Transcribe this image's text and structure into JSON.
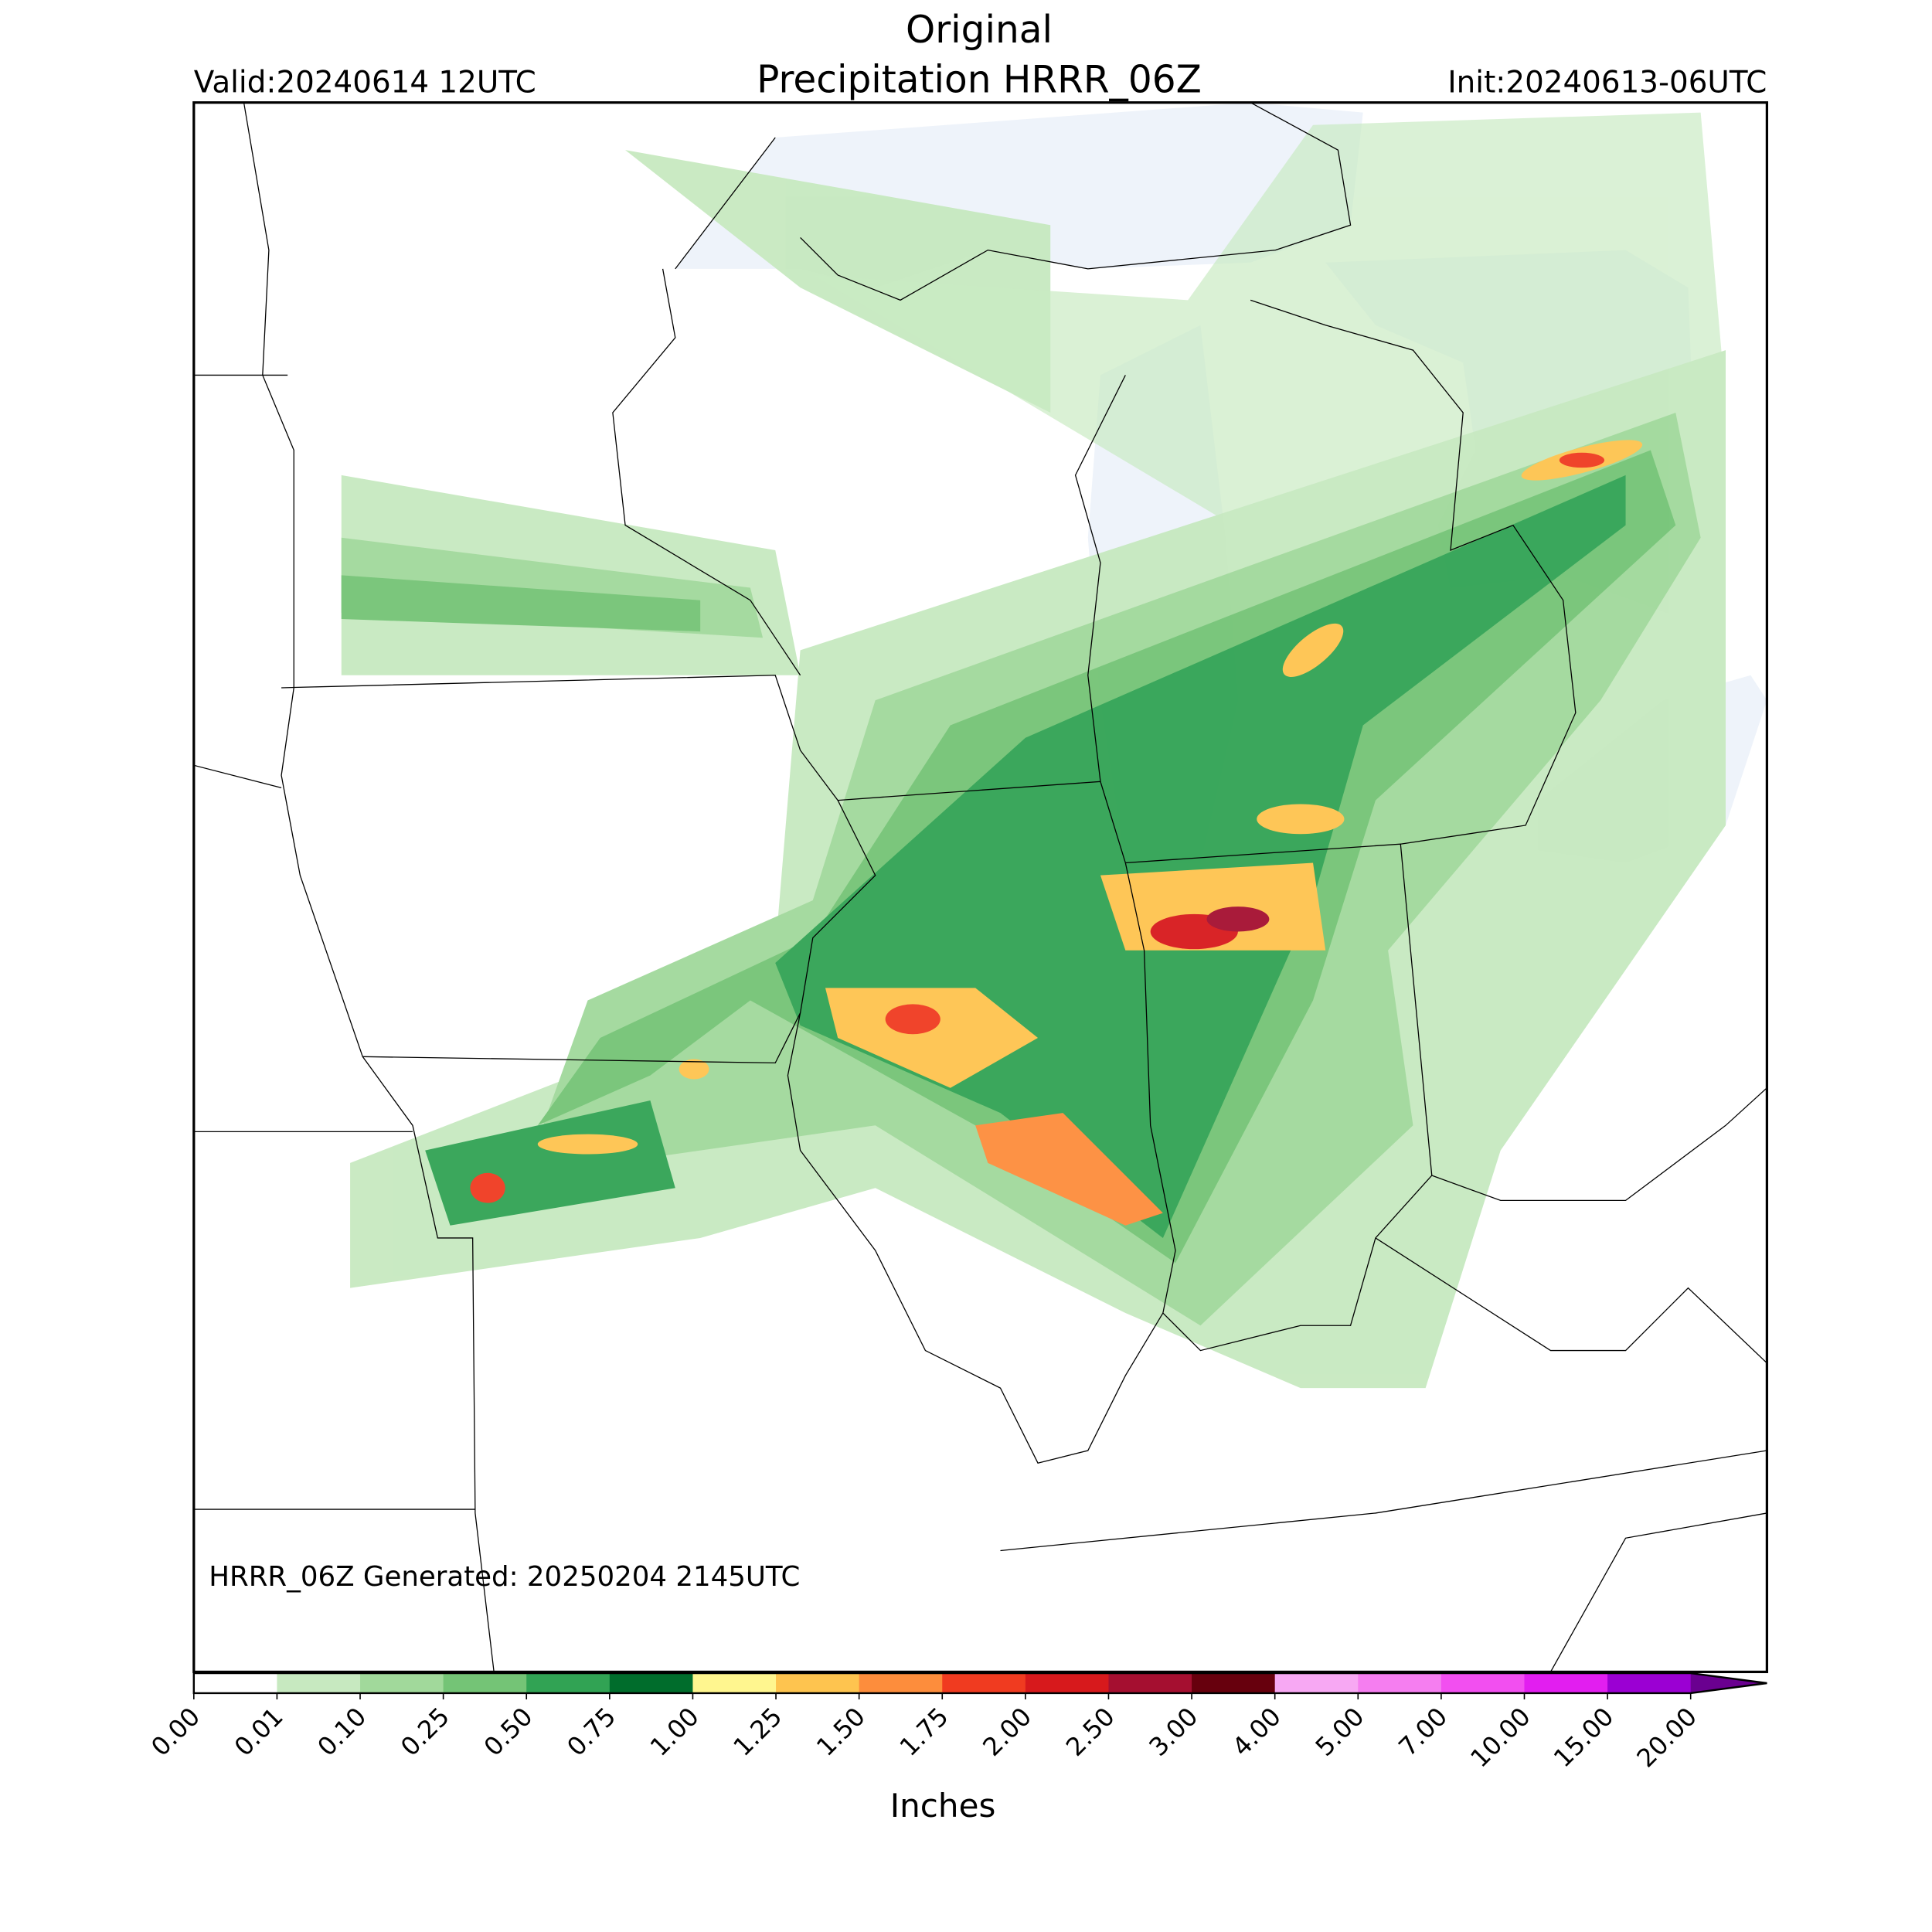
{
  "header": {
    "title": [
      "Original",
      "Precipitation HRRR_06Z"
    ],
    "valid": "Valid:20240614 12UTC",
    "init": "Init:20240613-06UTC"
  },
  "footer": "HRRR_06Z Generated: 20250204 2145UTC",
  "colorbar": {
    "label": "Inches",
    "ticks": [
      {
        "value": 0,
        "label": "0.00"
      },
      {
        "value": 0.01,
        "label": "0.01"
      },
      {
        "value": 0.1,
        "label": "0.10"
      },
      {
        "value": 0.25,
        "label": "0.25"
      },
      {
        "value": 0.5,
        "label": "0.50"
      },
      {
        "value": 0.75,
        "label": "0.75"
      },
      {
        "value": 1,
        "label": "1.00"
      },
      {
        "value": 1.25,
        "label": "1.25"
      },
      {
        "value": 1.5,
        "label": "1.50"
      },
      {
        "value": 1.75,
        "label": "1.75"
      },
      {
        "value": 2,
        "label": "2.00"
      },
      {
        "value": 2.5,
        "label": "2.50"
      },
      {
        "value": 3,
        "label": "3.00"
      },
      {
        "value": 4,
        "label": "4.00"
      },
      {
        "value": 5,
        "label": "5.00"
      },
      {
        "value": 7,
        "label": "7.00"
      },
      {
        "value": 10,
        "label": "10.00"
      },
      {
        "value": 15,
        "label": "15.00"
      },
      {
        "value": 20,
        "label": "20.00"
      }
    ],
    "colors": [
      "#ffffff",
      "#c7e9c0",
      "#a1d99b",
      "#74c476",
      "#31a354",
      "#006d2c",
      "#fff68f",
      "#fec44f",
      "#fd8d3c",
      "#f03b20",
      "#d7191c",
      "#a50f30",
      "#67000d",
      "#f7a8f3",
      "#f57ef0",
      "#f24ff0",
      "#e21ef0",
      "#9b00d3"
    ],
    "extend_color": "#6a0090"
  }
}
